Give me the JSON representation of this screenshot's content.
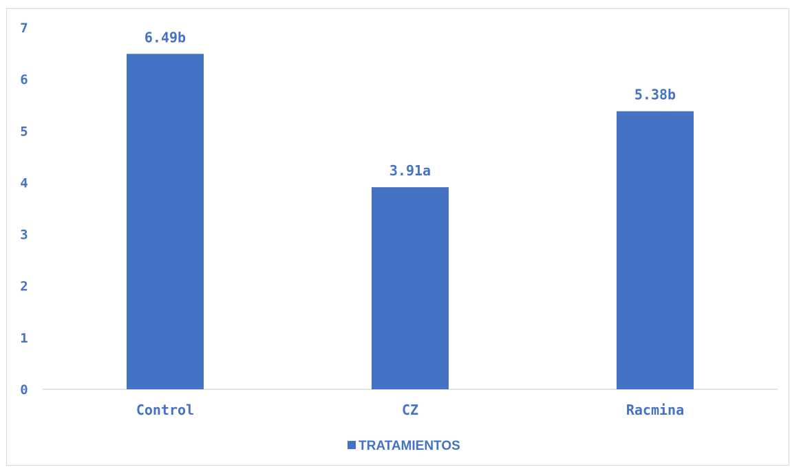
{
  "colors": {
    "bar": "#4472c4",
    "text": "#4472c4",
    "axis": "#d9d9d9"
  },
  "chart_data": {
    "type": "bar",
    "categories": [
      "Control",
      "CZ",
      "Racmina"
    ],
    "series": [
      {
        "name": "TRATAMIENTOS",
        "values": [
          6.49,
          3.91,
          5.38
        ],
        "data_labels": [
          "6.49b",
          "3.91a",
          "5.38b"
        ]
      }
    ],
    "yticks": [
      "0",
      "1",
      "2",
      "3",
      "4",
      "5",
      "6",
      "7"
    ],
    "ylim": [
      0,
      7
    ],
    "grid": false,
    "legend": "bottom"
  }
}
